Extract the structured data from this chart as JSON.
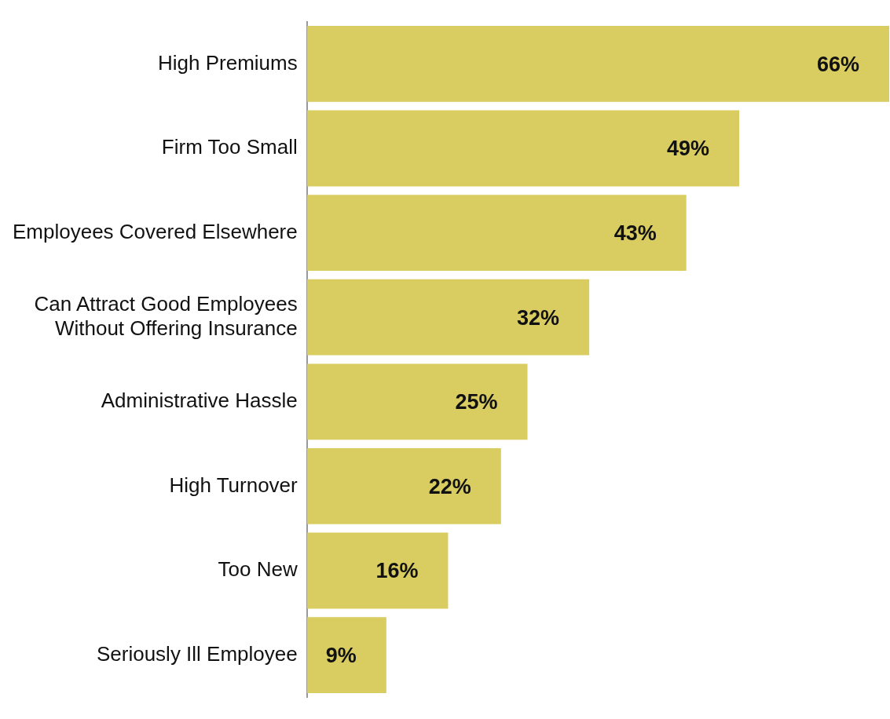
{
  "chart_data": {
    "type": "bar",
    "orientation": "horizontal",
    "categories": [
      "High Premiums",
      "Firm Too Small",
      "Employees Covered Elsewhere",
      "Can Attract Good Employees\nWithout Offering Insurance",
      "Administrative Hassle",
      "High Turnover",
      "Too New",
      "Seriously Ill Employee"
    ],
    "values": [
      66,
      49,
      43,
      32,
      25,
      22,
      16,
      9
    ],
    "color": "#d9cd61",
    "value_labels": [
      "66%",
      "49%",
      "43%",
      "32%",
      "25%",
      "22%",
      "16%",
      "9%"
    ],
    "grid": false,
    "legend": false,
    "tick_labels": "y"
  }
}
